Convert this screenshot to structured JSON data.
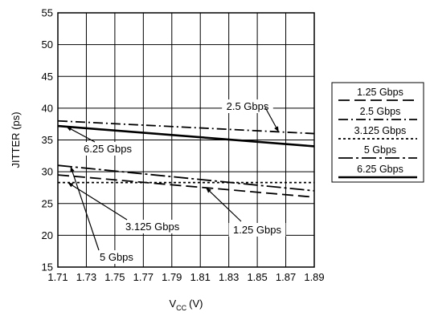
{
  "chart_data": {
    "type": "line",
    "title": "",
    "xlabel": "V",
    "xlabel_subscript": "CC",
    "xlabel_unit": "(V)",
    "ylabel": "JITTER (ps)",
    "xlim": [
      1.71,
      1.89
    ],
    "ylim": [
      15,
      55
    ],
    "grid": true,
    "legend_position": "right",
    "x_ticks": [
      "1.71",
      "1.73",
      "1.75",
      "1.77",
      "1.79",
      "1.81",
      "1.83",
      "1.85",
      "1.87",
      "1.89"
    ],
    "y_ticks": [
      "15",
      "20",
      "25",
      "30",
      "35",
      "40",
      "45",
      "50",
      "55"
    ],
    "series": [
      {
        "name": "1.25 Gbps",
        "dash": "long-dash",
        "x": [
          1.71,
          1.89
        ],
        "y": [
          29.5,
          26.0
        ]
      },
      {
        "name": "2.5 Gbps",
        "dash": "dash-dot",
        "x": [
          1.71,
          1.89
        ],
        "y": [
          38.0,
          36.0
        ]
      },
      {
        "name": "3.125 Gbps",
        "dash": "dot",
        "x": [
          1.71,
          1.89
        ],
        "y": [
          28.3,
          28.3
        ]
      },
      {
        "name": "5 Gbps",
        "dash": "dash-dot-long",
        "x": [
          1.71,
          1.89
        ],
        "y": [
          31.0,
          27.0
        ]
      },
      {
        "name": "6.25 Gbps",
        "dash": "solid-thick",
        "x": [
          1.71,
          1.89
        ],
        "y": [
          37.2,
          34.0
        ]
      }
    ],
    "annotations": [
      {
        "text": "2.5 Gbps",
        "series": "2.5 Gbps"
      },
      {
        "text": "6.25 Gbps",
        "series": "6.25 Gbps"
      },
      {
        "text": "3.125 Gbps",
        "series": "3.125 Gbps"
      },
      {
        "text": "1.25 Gbps",
        "series": "1.25 Gbps"
      },
      {
        "text": "5 Gbps",
        "series": "5 Gbps"
      }
    ]
  }
}
